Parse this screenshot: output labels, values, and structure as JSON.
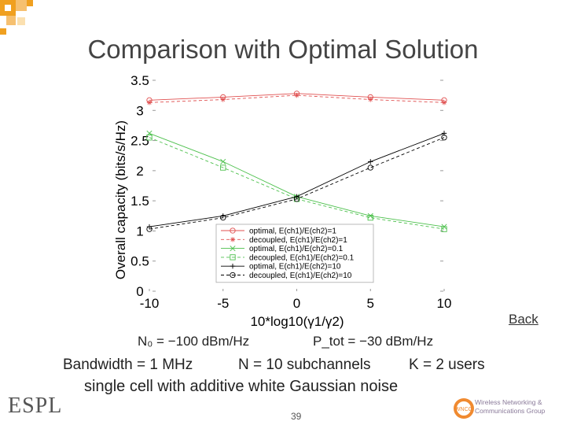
{
  "title": "Comparison with Optimal Solution",
  "back_label": "Back",
  "equations": {
    "line1_noise": "N₀ = −100 dBm/Hz",
    "line1_power": "P_tot = −30 dBm/Hz",
    "line2_bandwidth": "Bandwidth = 1 MHz",
    "line2_subchannels": "N = 10 subchannels",
    "line2_users": "K = 2 users",
    "line3": "single cell with additive white Gaussian noise"
  },
  "page_number": "39",
  "logo_left": "ESPL",
  "logo_right": [
    "Wireless Networking &",
    "Communications Group"
  ],
  "logo_right_badge": "WNCG",
  "colors": {
    "red": "#e05050",
    "green": "#4cc04c",
    "black": "#000000",
    "title": "#444444"
  },
  "chart_data": {
    "type": "line",
    "xlabel": "10*log10(γ1/γ2)",
    "ylabel": "Overall capacity (bits/s/Hz)",
    "x": [
      -10,
      -5,
      0,
      5,
      10
    ],
    "xlim": [
      -10,
      10
    ],
    "ylim": [
      0,
      3.5
    ],
    "xticks": [
      "-10",
      "-5",
      "0",
      "5",
      "10"
    ],
    "yticks": [
      "0",
      "0.5",
      "1",
      "1.5",
      "2",
      "2.5",
      "3",
      "3.5"
    ],
    "legend_position": "bottom-right",
    "series": [
      {
        "name": "optimal, E(ch1)/E(ch2)=1",
        "color": "#e05050",
        "dash": "solid",
        "marker": "circle",
        "values": [
          3.17,
          3.22,
          3.28,
          3.22,
          3.17
        ]
      },
      {
        "name": "decoupled, E(ch1)/E(ch2)=1",
        "color": "#e05050",
        "dash": "dashed",
        "marker": "star",
        "values": [
          3.13,
          3.18,
          3.25,
          3.18,
          3.13
        ]
      },
      {
        "name": "optimal, E(ch1)/E(ch2)=0.1",
        "color": "#4cc04c",
        "dash": "solid",
        "marker": "x",
        "values": [
          2.62,
          2.15,
          1.57,
          1.25,
          1.07
        ]
      },
      {
        "name": "decoupled, E(ch1)/E(ch2)=0.1",
        "color": "#4cc04c",
        "dash": "dashed",
        "marker": "square",
        "values": [
          2.55,
          2.05,
          1.53,
          1.22,
          1.03
        ]
      },
      {
        "name": "optimal, E(ch1)/E(ch2)=10",
        "color": "#000000",
        "dash": "solid",
        "marker": "plus",
        "values": [
          1.07,
          1.25,
          1.57,
          2.15,
          2.62
        ]
      },
      {
        "name": "decoupled, E(ch1)/E(ch2)=10",
        "color": "#000000",
        "dash": "dashed",
        "marker": "circle",
        "values": [
          1.03,
          1.22,
          1.53,
          2.05,
          2.55
        ]
      }
    ]
  }
}
